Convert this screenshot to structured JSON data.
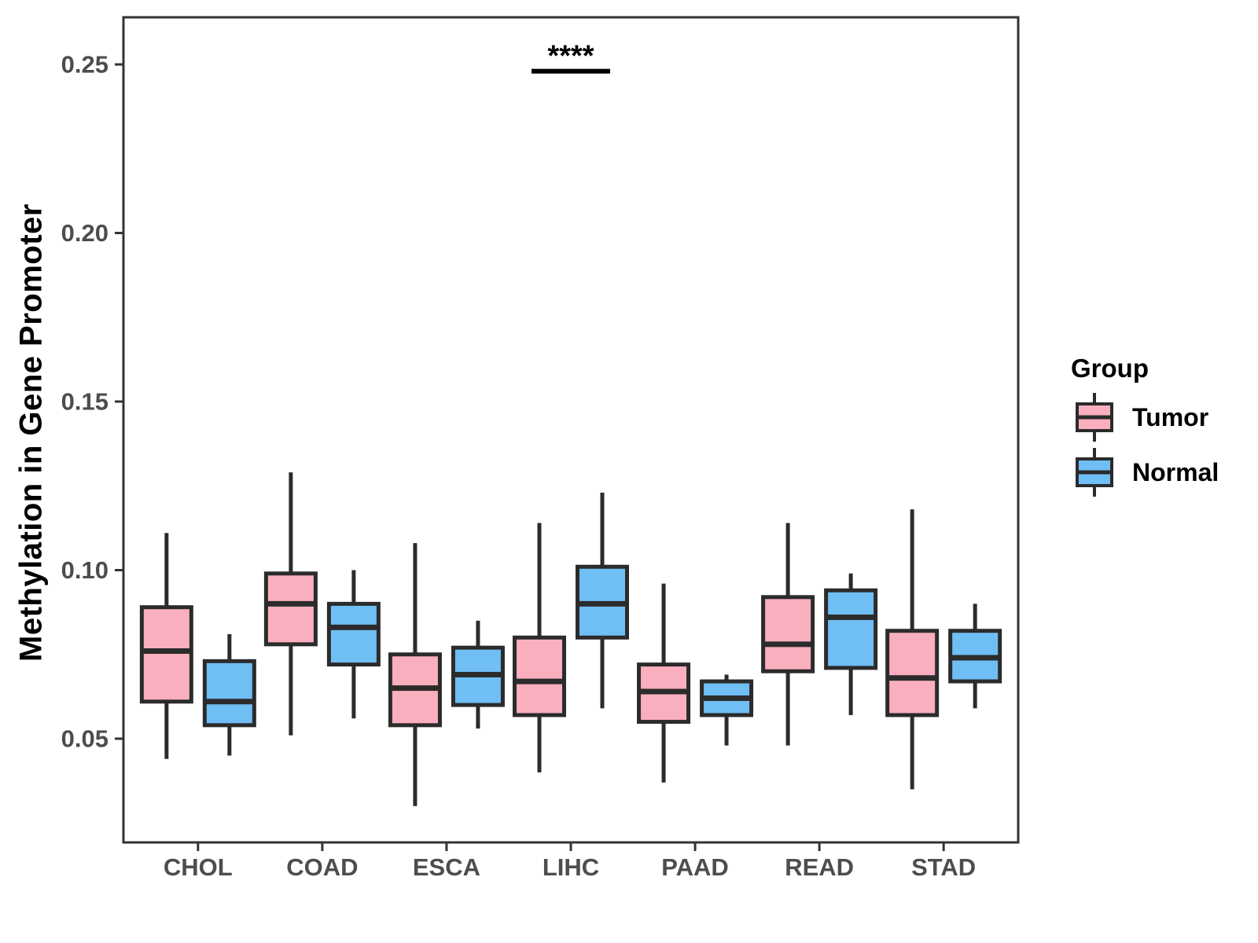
{
  "figure": {
    "background": "#FFFFFF"
  },
  "legend": {
    "title": "Group",
    "items": [
      {
        "label": "Tumor",
        "color": "#FAAFBE"
      },
      {
        "label": "Normal",
        "color": "#6FBEF4"
      }
    ]
  },
  "style": {
    "box_border": "#2B2B2B",
    "median_color": "#2B2B2B",
    "whisker_color": "#2B2B2B",
    "panel_border": "#333333",
    "axis_tick_color": "#333333",
    "axis_text_color": "#4D4D4D",
    "annotation_color": "#000000"
  },
  "chart_data": {
    "type": "boxplot",
    "title": "",
    "xlabel": "",
    "ylabel": "Methylation in Gene Promoter",
    "ylim": [
      0.022,
      0.263
    ],
    "yticks": [
      0.05,
      0.1,
      0.15,
      0.2,
      0.25
    ],
    "grid": false,
    "legend_position": "right",
    "legend_title": "Group",
    "categories": [
      "CHOL",
      "COAD",
      "ESCA",
      "LIHC",
      "PAAD",
      "READ",
      "STAD"
    ],
    "groups": [
      "Tumor",
      "Normal"
    ],
    "series": [
      {
        "name": "Tumor",
        "color": "#FAAFBE",
        "boxes": [
          {
            "category": "CHOL",
            "whisker_low": 0.044,
            "q1": 0.061,
            "median": 0.076,
            "q3": 0.089,
            "whisker_high": 0.111
          },
          {
            "category": "COAD",
            "whisker_low": 0.051,
            "q1": 0.078,
            "median": 0.09,
            "q3": 0.099,
            "whisker_high": 0.129
          },
          {
            "category": "ESCA",
            "whisker_low": 0.03,
            "q1": 0.054,
            "median": 0.065,
            "q3": 0.075,
            "whisker_high": 0.108
          },
          {
            "category": "LIHC",
            "whisker_low": 0.04,
            "q1": 0.057,
            "median": 0.067,
            "q3": 0.08,
            "whisker_high": 0.114
          },
          {
            "category": "PAAD",
            "whisker_low": 0.037,
            "q1": 0.055,
            "median": 0.064,
            "q3": 0.072,
            "whisker_high": 0.096
          },
          {
            "category": "READ",
            "whisker_low": 0.048,
            "q1": 0.07,
            "median": 0.078,
            "q3": 0.092,
            "whisker_high": 0.114
          },
          {
            "category": "STAD",
            "whisker_low": 0.035,
            "q1": 0.057,
            "median": 0.068,
            "q3": 0.082,
            "whisker_high": 0.118
          }
        ]
      },
      {
        "name": "Normal",
        "color": "#6FBEF4",
        "boxes": [
          {
            "category": "CHOL",
            "whisker_low": 0.045,
            "q1": 0.054,
            "median": 0.061,
            "q3": 0.073,
            "whisker_high": 0.081
          },
          {
            "category": "COAD",
            "whisker_low": 0.056,
            "q1": 0.072,
            "median": 0.083,
            "q3": 0.09,
            "whisker_high": 0.1
          },
          {
            "category": "ESCA",
            "whisker_low": 0.053,
            "q1": 0.06,
            "median": 0.069,
            "q3": 0.077,
            "whisker_high": 0.085
          },
          {
            "category": "LIHC",
            "whisker_low": 0.059,
            "q1": 0.08,
            "median": 0.09,
            "q3": 0.101,
            "whisker_high": 0.123
          },
          {
            "category": "PAAD",
            "whisker_low": 0.048,
            "q1": 0.057,
            "median": 0.062,
            "q3": 0.067,
            "whisker_high": 0.069
          },
          {
            "category": "READ",
            "whisker_low": 0.057,
            "q1": 0.071,
            "median": 0.086,
            "q3": 0.094,
            "whisker_high": 0.099
          },
          {
            "category": "STAD",
            "whisker_low": 0.059,
            "q1": 0.067,
            "median": 0.074,
            "q3": 0.082,
            "whisker_high": 0.09
          }
        ]
      }
    ],
    "annotation": {
      "text": "****",
      "category": "LIHC",
      "y_value": 0.248
    }
  }
}
